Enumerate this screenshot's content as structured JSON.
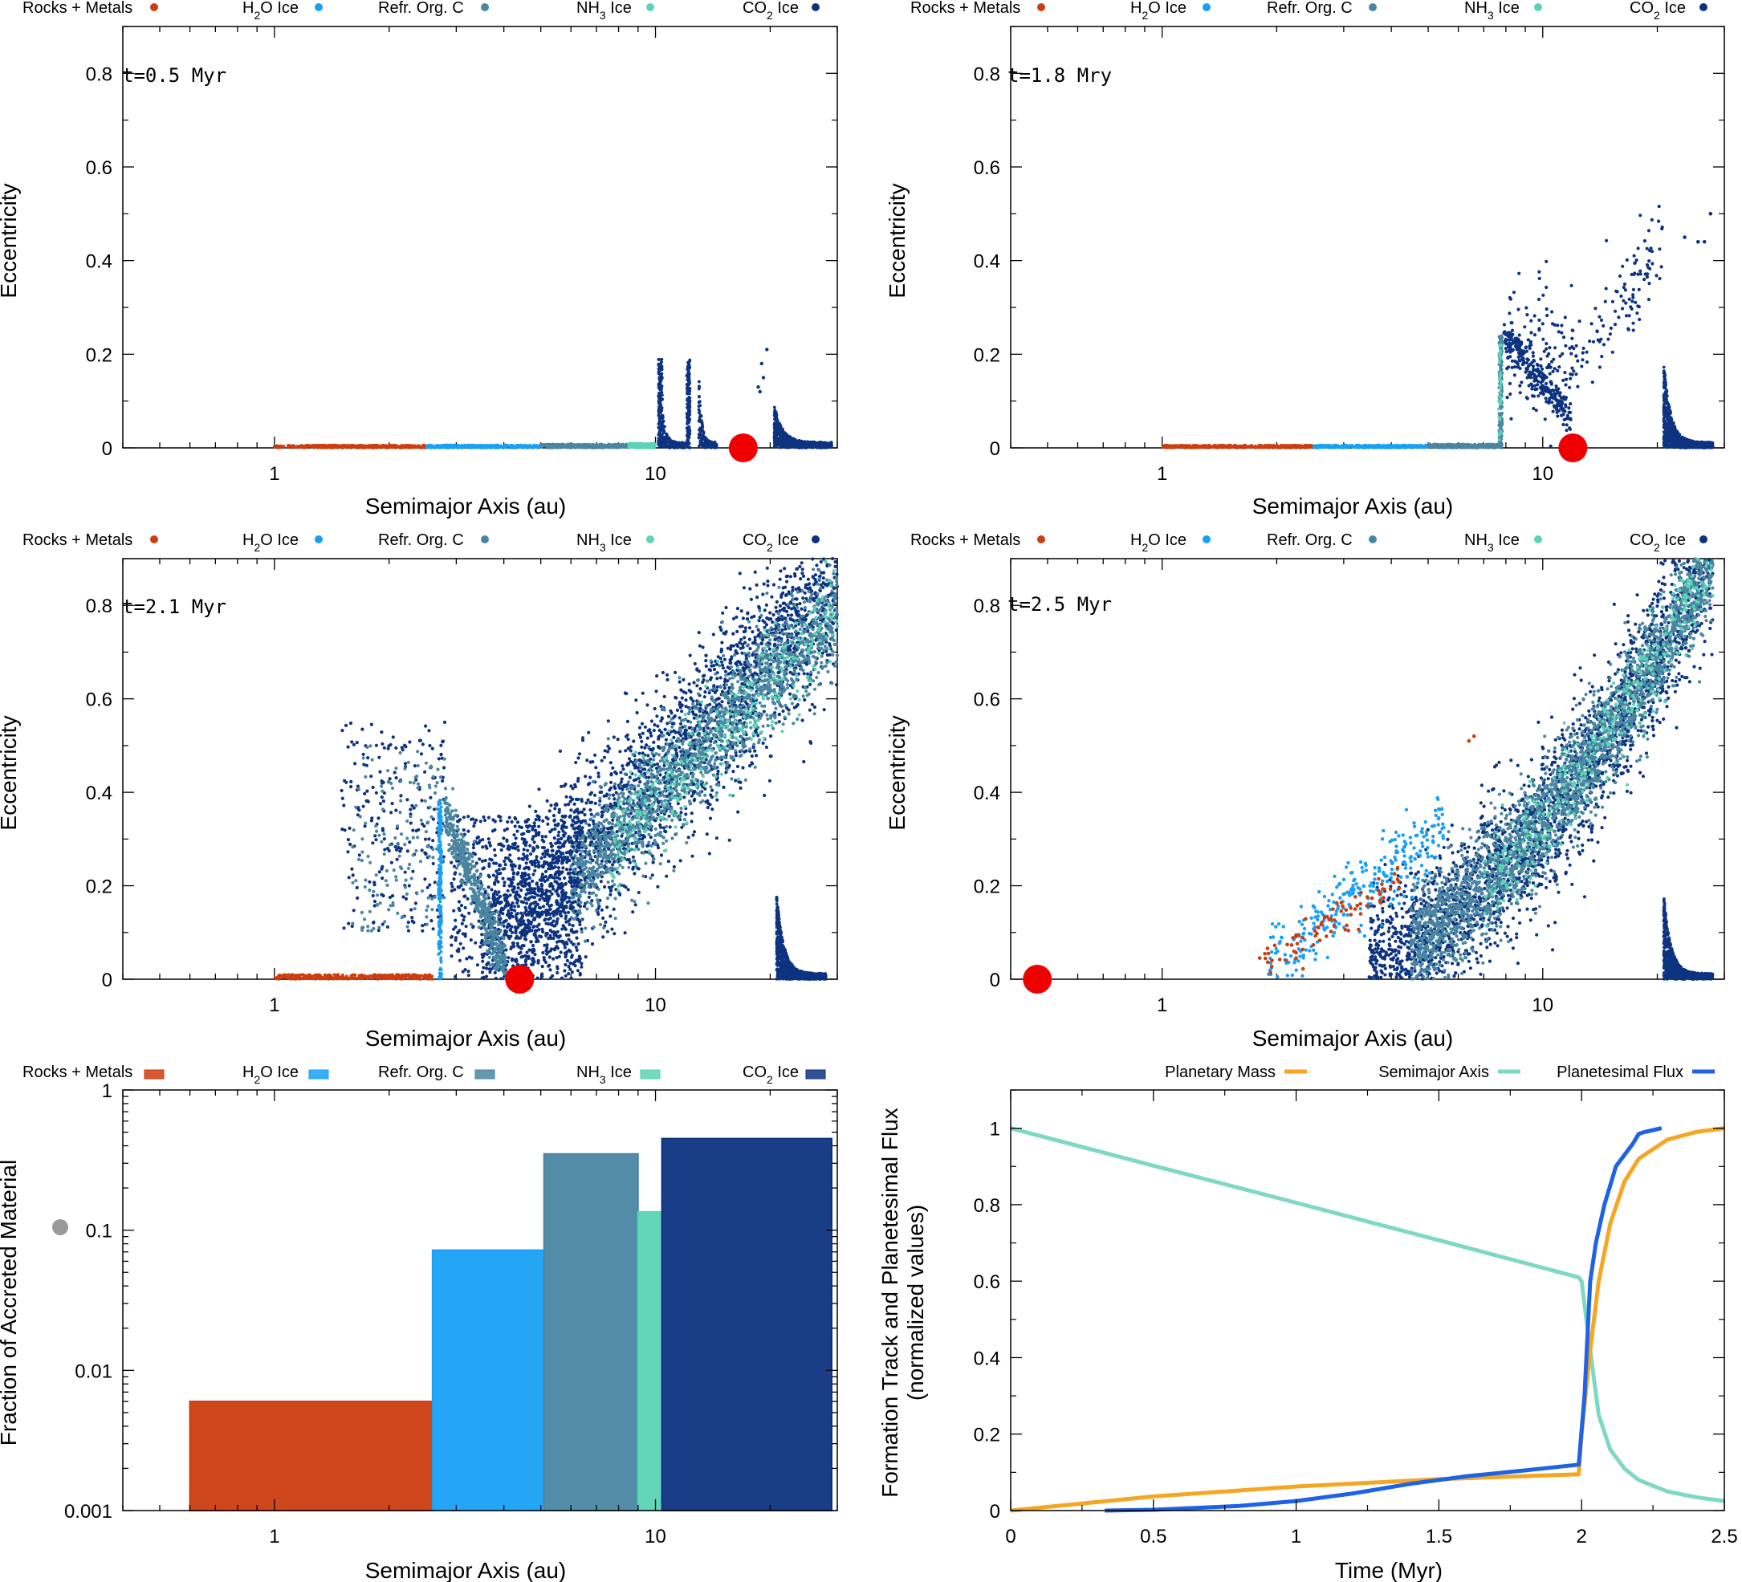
{
  "colors": {
    "rocks": "#cc3d10",
    "h2o": "#18a0f5",
    "refr": "#4a86a1",
    "nh3": "#5bd3b5",
    "co2": "#0d3380",
    "planet": "#ee0000",
    "mass": "#f5a623",
    "semimajor": "#7fd8c4",
    "flux": "#1e62e6",
    "gray": "#999999"
  },
  "legend": {
    "rocks": "Rocks + Metals",
    "h2o_pre": "H",
    "h2o_sub": "2",
    "h2o_post": "O Ice",
    "refr": "Refr. Org. C",
    "nh3_pre": "NH",
    "nh3_sub": "3",
    "nh3_post": " Ice",
    "co2_pre": "CO",
    "co2_sub": "2",
    "co2_post": " Ice"
  },
  "line_legend": {
    "mass": "Planetary Mass",
    "semimajor": "Semimajor Axis",
    "flux": "Planetesimal Flux"
  },
  "axes": {
    "semimajor_label": "Semimajor Axis (au)",
    "ecc_label": "Eccentricity",
    "fraction_label": "Fraction of Accreted Material",
    "time_label": "Time (Myr)",
    "track_label_1": "Formation Track and Planetesimal Flux",
    "track_label_2": "(normalized values)"
  },
  "chart_data": [
    {
      "type": "scatter",
      "title": "t=0.5 Myr",
      "xlabel": "Semimajor Axis (au)",
      "ylabel": "Eccentricity",
      "xscale": "log",
      "xlim": [
        0.4,
        30
      ],
      "ylim": [
        0,
        0.9
      ],
      "xticks": [
        1,
        10
      ],
      "yticks": [
        0,
        0.2,
        0.4,
        0.6,
        0.8
      ],
      "planet": {
        "a": 17,
        "e": 0
      },
      "series": [
        {
          "name": "Rocks + Metals",
          "a_range": [
            1.0,
            2.5
          ],
          "e_max": 0.006
        },
        {
          "name": "H2O Ice",
          "a_range": [
            2.5,
            5.0
          ],
          "e_max": 0.006
        },
        {
          "name": "Refr. Org. C",
          "a_range": [
            5.0,
            8.5
          ],
          "e_max": 0.008
        },
        {
          "name": "NH3 Ice",
          "a_range": [
            8.5,
            10.0
          ],
          "e_max": 0.01
        },
        {
          "name": "CO2 Ice",
          "features": [
            {
              "a": 10.3,
              "e_max": 0.19
            },
            {
              "a": 12.2,
              "e_max": 0.19
            },
            {
              "a": 13.0,
              "e_max": 0.15
            },
            {
              "a_range": [
                20.5,
                29
              ],
              "e_max": 0.08
            }
          ]
        }
      ]
    },
    {
      "type": "scatter",
      "title": "t=1.8 Mry",
      "xlabel": "Semimajor Axis (au)",
      "ylabel": "Eccentricity",
      "xscale": "log",
      "xlim": [
        0.4,
        30
      ],
      "ylim": [
        0,
        0.9
      ],
      "xticks": [
        1,
        10
      ],
      "yticks": [
        0,
        0.2,
        0.4,
        0.6,
        0.8
      ],
      "planet": {
        "a": 12,
        "e": 0
      },
      "series": [
        {
          "name": "Rocks + Metals",
          "a_range": [
            1.0,
            2.5
          ],
          "e_max": 0.006
        },
        {
          "name": "H2O Ice",
          "a_range": [
            2.5,
            5.0
          ],
          "e_max": 0.006
        },
        {
          "name": "Refr. Org. C",
          "a_range": [
            5.0,
            7.8
          ],
          "e_max": 0.24
        },
        {
          "name": "NH3 Ice",
          "a_range": [
            7.6,
            7.8
          ],
          "e_max": 0.24
        },
        {
          "name": "CO2 Ice",
          "a_range": [
            7.8,
            28
          ],
          "e_max": 0.5
        }
      ]
    },
    {
      "type": "scatter",
      "title": "t=2.1 Myr",
      "xlabel": "Semimajor Axis (au)",
      "ylabel": "Eccentricity",
      "xscale": "log",
      "xlim": [
        0.4,
        30
      ],
      "ylim": [
        0,
        0.9
      ],
      "xticks": [
        1,
        10
      ],
      "yticks": [
        0,
        0.2,
        0.4,
        0.6,
        0.8
      ],
      "planet": {
        "a": 4.4,
        "e": 0
      },
      "series": [
        {
          "name": "Rocks + Metals",
          "a_range": [
            1.0,
            2.6
          ],
          "e_max": 0.01
        },
        {
          "name": "H2O Ice",
          "a_range": [
            2.6,
            2.8
          ],
          "e_max": 0.38
        },
        {
          "name": "Refr. Org. C",
          "a_range": [
            1.6,
            30
          ],
          "e_max": 0.85
        },
        {
          "name": "NH3 Ice",
          "a_range": [
            7,
            25
          ],
          "e_max": 0.7
        },
        {
          "name": "CO2 Ice",
          "a_range": [
            1.3,
            30
          ],
          "e_max": 0.86
        }
      ]
    },
    {
      "type": "scatter",
      "title": "t=2.5 Myr",
      "xlabel": "Semimajor Axis (au)",
      "ylabel": "Eccentricity",
      "xscale": "log",
      "xlim": [
        0.4,
        30
      ],
      "ylim": [
        0,
        0.9
      ],
      "xticks": [
        1,
        10
      ],
      "yticks": [
        0,
        0.2,
        0.4,
        0.6,
        0.8
      ],
      "planet": {
        "a": 0.47,
        "e": 0
      },
      "series": [
        {
          "name": "Rocks + Metals",
          "a_range": [
            1.8,
            6.8
          ],
          "e_max": 0.52
        },
        {
          "name": "H2O Ice",
          "a_range": [
            1.9,
            5.5
          ],
          "e_max": 0.46
        },
        {
          "name": "Refr. Org. C",
          "a_range": [
            3,
            25
          ],
          "e_max": 0.76
        },
        {
          "name": "NH3 Ice",
          "a_range": [
            6,
            22
          ],
          "e_max": 0.7
        },
        {
          "name": "CO2 Ice",
          "a_range": [
            3,
            28
          ],
          "e_max": 0.78
        }
      ]
    },
    {
      "type": "bar",
      "xlabel": "Semimajor Axis (au)",
      "ylabel": "Fraction of Accreted Material",
      "xscale": "log",
      "yscale": "log",
      "xlim": [
        0.4,
        30
      ],
      "ylim": [
        0.001,
        1
      ],
      "xticks": [
        1,
        10
      ],
      "yticks": [
        0.001,
        0.01,
        0.1,
        1
      ],
      "ytick_labels": [
        "0.001",
        "0.01",
        "0.1",
        "1"
      ],
      "bars": [
        {
          "name": "Rocks + Metals",
          "x_range": [
            0.6,
            2.6
          ],
          "value": 0.006
        },
        {
          "name": "H2O Ice",
          "x_range": [
            2.6,
            5.1
          ],
          "value": 0.072
        },
        {
          "name": "Refr. Org. C",
          "x_range": [
            5.1,
            9.0
          ],
          "value": 0.35
        },
        {
          "name": "NH3 Ice",
          "x_range": [
            9.0,
            10.4
          ],
          "value": 0.135
        },
        {
          "name": "CO2 Ice",
          "x_range": [
            10.4,
            29
          ],
          "value": 0.45
        }
      ],
      "marker": {
        "value": 0.105
      }
    },
    {
      "type": "line",
      "xlabel": "Time (Myr)",
      "ylabel": "Formation Track and Planetesimal Flux (normalized values)",
      "xlim": [
        0,
        2.5
      ],
      "ylim": [
        0,
        1.1
      ],
      "xticks": [
        0,
        0.5,
        1,
        1.5,
        2,
        2.5
      ],
      "xtick_labels": [
        "0",
        "0.5",
        "1",
        "1.5",
        "2",
        "2.5"
      ],
      "yticks": [
        0,
        0.2,
        0.4,
        0.6,
        0.8,
        1
      ],
      "ytick_labels": [
        "0",
        "0.2",
        "0.4",
        "0.6",
        "0.8",
        "1"
      ],
      "series": [
        {
          "name": "Planetary Mass",
          "x": [
            0,
            0.5,
            1,
            1.5,
            1.99,
            2.0,
            2.03,
            2.06,
            2.1,
            2.15,
            2.2,
            2.3,
            2.4,
            2.5
          ],
          "y": [
            0,
            0.037,
            0.063,
            0.082,
            0.095,
            0.2,
            0.42,
            0.6,
            0.75,
            0.86,
            0.92,
            0.97,
            0.99,
            1.0
          ]
        },
        {
          "name": "Semimajor Axis",
          "x": [
            0,
            0.5,
            1,
            1.5,
            1.99,
            2.0,
            2.03,
            2.06,
            2.1,
            2.15,
            2.2,
            2.3,
            2.4,
            2.5
          ],
          "y": [
            1.0,
            0.902,
            0.805,
            0.707,
            0.61,
            0.6,
            0.42,
            0.25,
            0.16,
            0.11,
            0.08,
            0.05,
            0.035,
            0.025
          ]
        },
        {
          "name": "Planetesimal Flux",
          "x": [
            0.33,
            0.5,
            0.8,
            1.0,
            1.2,
            1.4,
            1.6,
            1.8,
            1.99,
            2.01,
            2.03,
            2.05,
            2.08,
            2.1,
            2.12,
            2.15,
            2.18,
            2.2,
            2.22,
            2.25,
            2.28
          ],
          "y": [
            0.0,
            0.002,
            0.012,
            0.025,
            0.045,
            0.07,
            0.09,
            0.105,
            0.12,
            0.3,
            0.6,
            0.7,
            0.8,
            0.85,
            0.9,
            0.93,
            0.96,
            0.985,
            0.99,
            0.995,
            1.0
          ]
        }
      ]
    }
  ]
}
